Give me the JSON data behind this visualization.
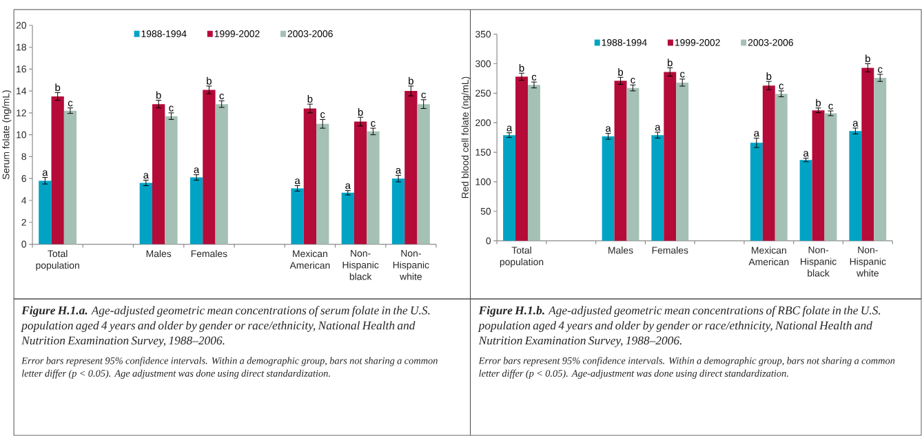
{
  "chart_data": [
    {
      "type": "bar",
      "ylabel": "Serum folate (ng/mL)",
      "ylim": [
        0,
        20
      ],
      "yticks": [
        0,
        2,
        4,
        6,
        8,
        10,
        12,
        14,
        16,
        18,
        20
      ],
      "legend": "top",
      "categories": [
        "Total population",
        null,
        "Males",
        "Females",
        null,
        "Mexican American",
        "Non-Hispanic black",
        "Non-Hispanic white"
      ],
      "series": [
        {
          "name": "1988-1994",
          "color": "#00a3c4",
          "values": [
            5.8,
            null,
            5.6,
            6.1,
            null,
            5.1,
            4.7,
            6.0
          ],
          "errors": [
            0.3,
            null,
            0.25,
            0.25,
            null,
            0.25,
            0.2,
            0.3
          ],
          "value_labels": [
            "a",
            null,
            "a",
            "a",
            null,
            "a",
            "a",
            "a"
          ]
        },
        {
          "name": "1999-2002",
          "color": "#b40b39",
          "values": [
            13.5,
            null,
            12.8,
            14.1,
            null,
            12.4,
            11.2,
            14.0
          ],
          "errors": [
            0.35,
            null,
            0.35,
            0.35,
            null,
            0.4,
            0.4,
            0.45
          ],
          "value_labels": [
            "b",
            null,
            "b",
            "b",
            null,
            "b",
            "b",
            "b"
          ]
        },
        {
          "name": "2003-2006",
          "color": "#a5c0b4",
          "values": [
            12.2,
            null,
            11.7,
            12.8,
            null,
            11.0,
            10.3,
            12.8
          ],
          "errors": [
            0.25,
            null,
            0.3,
            0.3,
            null,
            0.4,
            0.3,
            0.4
          ],
          "value_labels": [
            "c",
            null,
            "c",
            "c",
            null,
            "c",
            "c",
            "c"
          ]
        }
      ],
      "annotations": [
        "**Figure H.1.a.** Age-adjusted geometric mean concentrations of serum folate in the U.S. population aged 4 years and older by gender or race/ethnicity, National Health and Nutrition Examination Survey, 1988–2006.",
        "Error bars represent 95% confidence intervals. Within a demographic group, bars not sharing a common letter differ (p < 0.05). Age adjustment was done using direct standardization."
      ]
    },
    {
      "type": "bar",
      "ylabel": "Red blood cell folate (ng/mL)",
      "ylim": [
        0,
        350
      ],
      "yticks": [
        0,
        50,
        100,
        150,
        200,
        250,
        300,
        350
      ],
      "legend": "top",
      "categories": [
        "Total population",
        null,
        "Males",
        "Females",
        null,
        "Mexican American",
        "Non-Hispanic black",
        "Non-Hispanic white"
      ],
      "series": [
        {
          "name": "1988-1994",
          "color": "#00a3c4",
          "values": [
            179,
            null,
            177,
            179,
            null,
            166,
            137,
            186
          ],
          "errors": [
            4,
            null,
            5,
            5,
            null,
            8,
            3,
            5
          ],
          "value_labels": [
            "a",
            null,
            "a",
            "a",
            null,
            "a",
            "a",
            "a"
          ]
        },
        {
          "name": "1999-2002",
          "color": "#b40b39",
          "values": [
            278,
            null,
            271,
            286,
            null,
            263,
            221,
            293
          ],
          "errors": [
            6,
            null,
            6,
            7,
            null,
            7,
            4,
            7
          ],
          "value_labels": [
            "b",
            null,
            "b",
            "b",
            null,
            "b",
            "b",
            "b"
          ]
        },
        {
          "name": "2003-2006",
          "color": "#a5c0b4",
          "values": [
            264,
            null,
            259,
            268,
            null,
            249,
            216,
            276
          ],
          "errors": [
            5,
            null,
            5,
            6,
            null,
            5,
            4,
            6
          ],
          "value_labels": [
            "c",
            null,
            "c",
            "c",
            null,
            "c",
            "c",
            "c"
          ]
        }
      ],
      "annotations": [
        "**Figure H.1.b.** Age-adjusted geometric mean concentrations of RBC folate in the U.S. population aged 4 years and older by gender or race/ethnicity, National Health and Nutrition Examination Survey, 1988–2006.",
        "Error bars represent 95% confidence intervals. Within a demographic group, bars not sharing a common letter differ (p < 0.05). Age-adjustment was done using direct standardization."
      ]
    }
  ]
}
